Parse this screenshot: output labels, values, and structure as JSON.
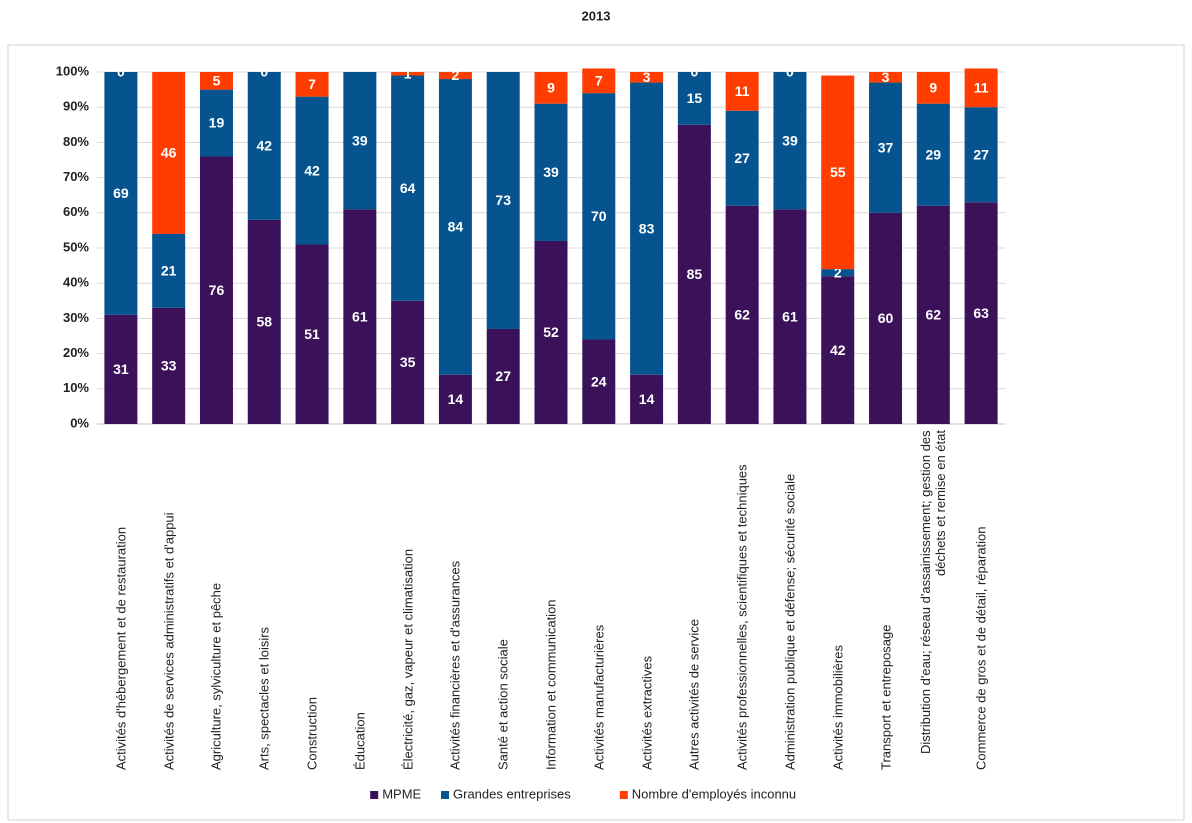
{
  "chart_data": {
    "type": "stacked_bar",
    "title": "2013",
    "categories": [
      "Activités d'hébergement et de restauration",
      "Activités de services administratifs et d'appui",
      "Agriculture, sylviculture et pêche",
      "Arts, spectacles et loisirs",
      "Construction",
      "Éducation",
      "Électricité, gaz, vapeur et climatisation",
      "Activités financières et d'assurances",
      "Santé et action sociale",
      "Information et communication",
      "Activités manufacturières",
      "Activités extractives",
      "Autres activités de service",
      "Activités professionnelles, scientifiques et techniques",
      "Administration publique et défense; sécurité sociale",
      "Activités immobilières",
      "Transport et entreposage",
      "Distribution d'eau; réseau d'assainissement; gestion des déchets et remise en état",
      "Commerce de gros et de détail, réparation"
    ],
    "series": [
      {
        "name": "MPME",
        "color": "#3b1259",
        "values": [
          31,
          33,
          76,
          58,
          51,
          61,
          35,
          14,
          27,
          52,
          24,
          14,
          85,
          62,
          61,
          42,
          60,
          62,
          63
        ]
      },
      {
        "name": "Grandes entreprises",
        "color": "#06548f",
        "values": [
          69,
          21,
          19,
          42,
          42,
          39,
          64,
          84,
          73,
          39,
          70,
          83,
          15,
          27,
          39,
          2,
          37,
          29,
          27
        ]
      },
      {
        "name": "Nombre d'employés inconnu",
        "color": "#ff3d00",
        "values": [
          0,
          46,
          5,
          0,
          7,
          0,
          1,
          2,
          0,
          9,
          7,
          3,
          0,
          11,
          0,
          55,
          3,
          9,
          11
        ],
        "value_labels": [
          "0",
          "46",
          "5",
          "0",
          "7",
          null,
          "1",
          "2",
          null,
          "9",
          "7",
          "3",
          "0",
          "11",
          "0",
          "55",
          "3",
          "9",
          "11"
        ]
      }
    ],
    "ylim": [
      0,
      100
    ],
    "yticks": [
      {
        "value": 0,
        "label": "0%"
      },
      {
        "value": 10,
        "label": "10%"
      },
      {
        "value": 20,
        "label": "20%"
      },
      {
        "value": 30,
        "label": "30%"
      },
      {
        "value": 40,
        "label": "40%"
      },
      {
        "value": 50,
        "label": "50%"
      },
      {
        "value": 60,
        "label": "60%"
      },
      {
        "value": 70,
        "label": "70%"
      },
      {
        "value": 80,
        "label": "80%"
      },
      {
        "value": 90,
        "label": "90%"
      },
      {
        "value": 100,
        "label": "100%"
      }
    ],
    "grid": true,
    "legend": "bottom"
  }
}
